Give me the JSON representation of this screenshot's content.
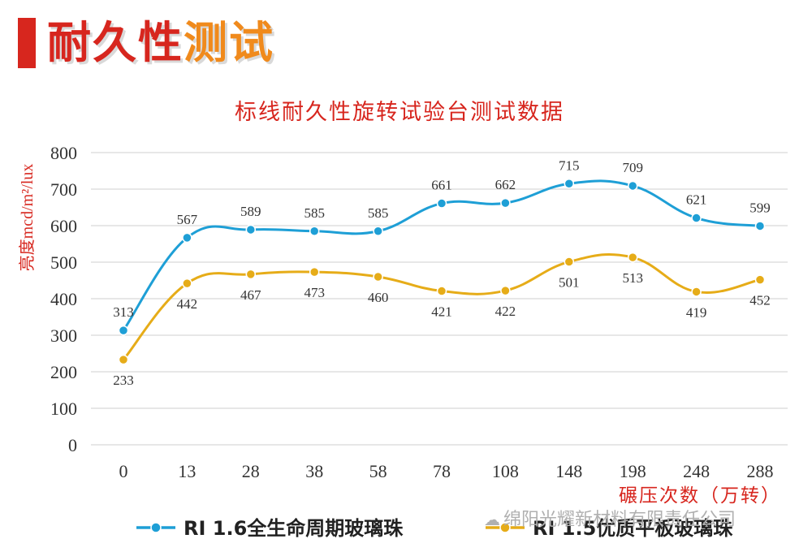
{
  "header": {
    "title_part1": "耐久性",
    "title_part2": "测试"
  },
  "watermark": {
    "icon": "wechat-icon",
    "text": "绵阳光耀新材料有限责任公司"
  },
  "colors": {
    "series1": "#1e9fd6",
    "series2": "#e6ac18",
    "title_red": "#d7261e",
    "grid": "#cfcfcf"
  },
  "chart_data": {
    "type": "line",
    "title": "标线耐久性旋转试验台测试数据",
    "xlabel": "碾压次数（万转）",
    "ylabel": "亮度mcd/m²/lux",
    "categories": [
      "0",
      "13",
      "28",
      "38",
      "58",
      "78",
      "108",
      "148",
      "198",
      "248",
      "288"
    ],
    "yticks": [
      0,
      100,
      200,
      300,
      400,
      500,
      600,
      700,
      800
    ],
    "ylim": [
      0,
      800
    ],
    "grid": true,
    "legend_position": "bottom",
    "series": [
      {
        "name": "RI 1.6全生命周期玻璃珠",
        "values": [
          313,
          567,
          589,
          585,
          585,
          661,
          662,
          715,
          709,
          621,
          599
        ],
        "label_placement": "above"
      },
      {
        "name": "RI 1.5优质平板玻璃珠",
        "values": [
          233,
          442,
          467,
          473,
          460,
          421,
          422,
          501,
          513,
          419,
          452
        ],
        "label_placement": "below"
      }
    ]
  }
}
